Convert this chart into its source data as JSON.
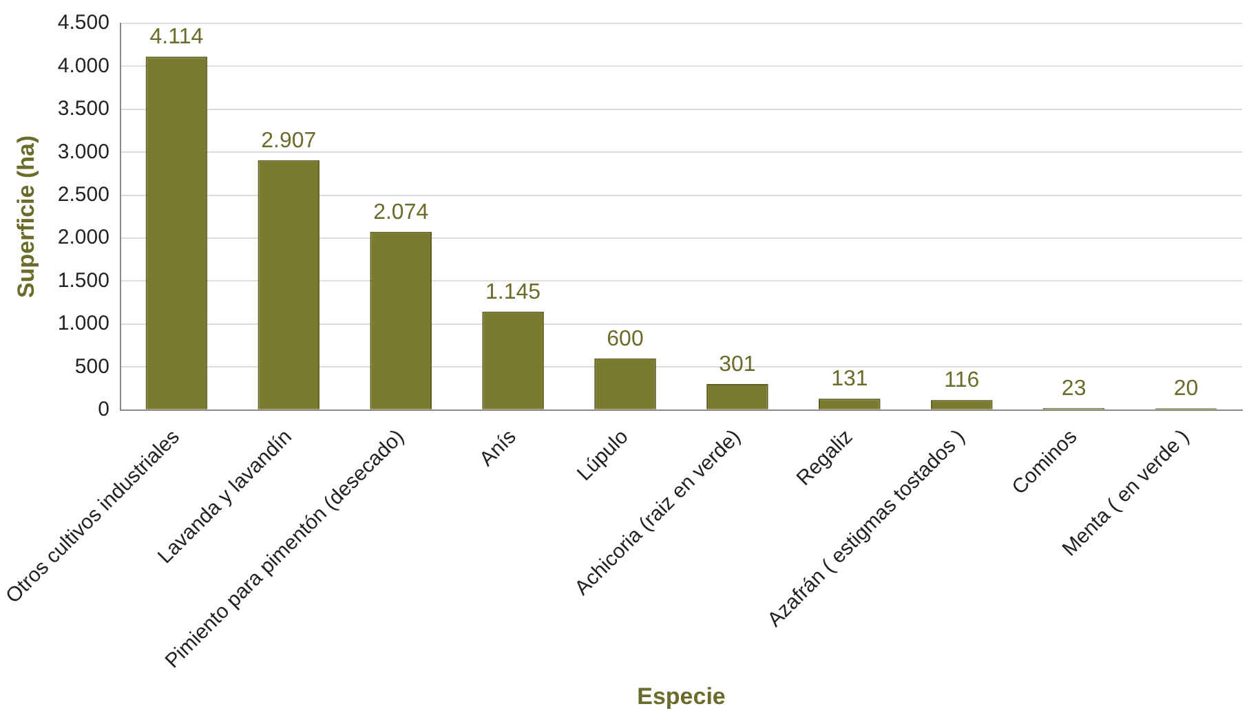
{
  "chart_data": {
    "type": "bar",
    "xlabel": "Especie",
    "ylabel": "Superficie (ha)",
    "categories": [
      "Otros cultivos industriales",
      "Lavanda y lavandín",
      "Pimiento para pimentón (desecado)",
      "Anís",
      "Lúpulo",
      "Achicoria (raiz en verde)",
      "Regaliz",
      "Azafrán ( estigmas tostados )",
      "Cominos",
      "Menta ( en verde )"
    ],
    "values": [
      4114,
      2907,
      2074,
      1145,
      600,
      301,
      131,
      116,
      23,
      20
    ],
    "value_labels": [
      "4.114",
      "2.907",
      "2.074",
      "1.145",
      "600",
      "301",
      "131",
      "116",
      "23",
      "20"
    ],
    "color": "#7b7b2f",
    "ylim": [
      0,
      4500
    ],
    "yticks": [
      {
        "value": 0,
        "label": "0"
      },
      {
        "value": 500,
        "label": "500"
      },
      {
        "value": 1000,
        "label": "1.000"
      },
      {
        "value": 1500,
        "label": "1.500"
      },
      {
        "value": 2000,
        "label": "2.000"
      },
      {
        "value": 2500,
        "label": "2.500"
      },
      {
        "value": 3000,
        "label": "3.000"
      },
      {
        "value": 3500,
        "label": "3.500"
      },
      {
        "value": 4000,
        "label": "4.000"
      },
      {
        "value": 4500,
        "label": "4.500"
      }
    ],
    "grid": "y"
  }
}
